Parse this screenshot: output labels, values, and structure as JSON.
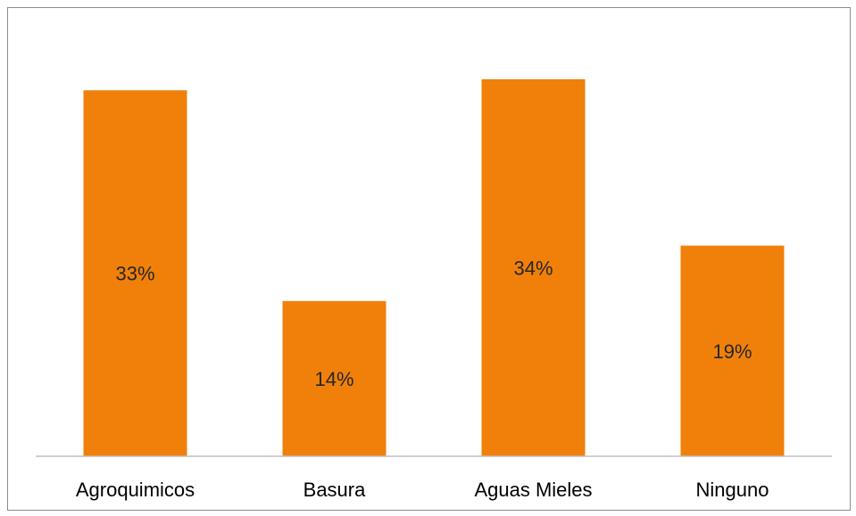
{
  "chart_data": {
    "type": "bar",
    "title": "",
    "xlabel": "",
    "ylabel": "",
    "categories": [
      "Agroquimicos",
      "Basura",
      "Aguas Mieles",
      "Ninguno"
    ],
    "values": [
      33,
      14,
      34,
      19
    ],
    "data_labels": [
      "33%",
      "14%",
      "34%",
      "19%"
    ],
    "ylim": [
      0,
      36
    ],
    "grid": false,
    "legend": "none",
    "bar_color": "#F0800A"
  }
}
